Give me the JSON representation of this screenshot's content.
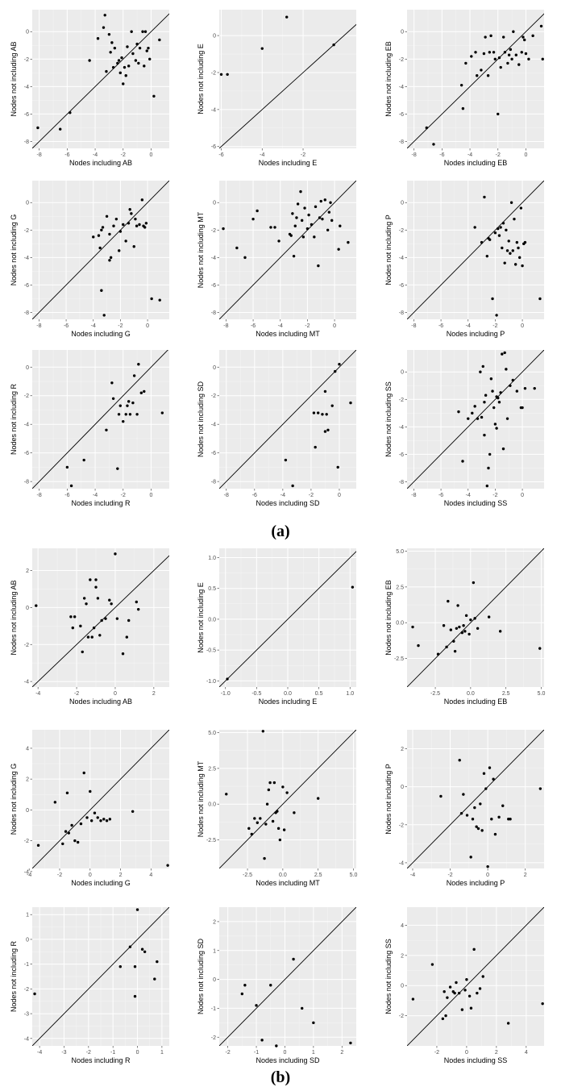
{
  "captions": {
    "a": "(a)",
    "b": "(b)"
  },
  "chart_data": [
    {
      "type": "scatter",
      "panel": "a",
      "xlabel": "Nodes including AB",
      "ylabel": "Nodes not including AB",
      "xlim": [
        -8.5,
        1.3
      ],
      "ylim": [
        -8.5,
        1.6
      ],
      "xticks": [
        -8,
        -6,
        -4,
        -2,
        0
      ],
      "yticks": [
        -8,
        -6,
        -4,
        -2,
        0
      ],
      "x": [
        -8.1,
        -6.5,
        -5.8,
        -4.4,
        -3.8,
        -3.4,
        -3.3,
        -3.2,
        -3.0,
        -2.9,
        -2.8,
        -2.7,
        -2.6,
        -2.4,
        -2.3,
        -2.1,
        -2.0,
        -1.8,
        -1.7,
        -1.6,
        -1.4,
        -1.3,
        -1.1,
        -1.0,
        -0.9,
        -0.8,
        -0.6,
        -0.5,
        -0.4,
        -0.3,
        -0.2,
        -0.1,
        0.2,
        0.6,
        -1.9,
        -2.2
      ],
      "y": [
        -7.0,
        -7.1,
        -5.9,
        -2.1,
        -0.5,
        0.3,
        1.2,
        -2.9,
        -0.2,
        -1.5,
        -0.8,
        -2.6,
        -1.2,
        -2.3,
        -2.1,
        -1.9,
        -3.8,
        -3.2,
        -1.1,
        -2.5,
        0.0,
        -1.6,
        -2.1,
        -0.9,
        -2.3,
        -1.2,
        0.0,
        -2.5,
        0.0,
        -1.4,
        -1.2,
        -2.0,
        -4.7,
        -0.6,
        -2.6,
        -3.0
      ]
    },
    {
      "type": "scatter",
      "panel": "a",
      "xlabel": "Nodes including E",
      "ylabel": "Nodes not including E",
      "xlim": [
        -6.1,
        0.6
      ],
      "ylim": [
        -6.1,
        1.4
      ],
      "xticks": [
        -6,
        -4,
        -2
      ],
      "yticks": [
        -6,
        -4,
        -2,
        0
      ],
      "x": [
        -6.0,
        -5.7,
        -4.0,
        -2.8,
        -0.5
      ],
      "y": [
        -2.1,
        -2.1,
        -0.7,
        1.0,
        -0.5
      ]
    },
    {
      "type": "scatter",
      "panel": "a",
      "xlabel": "Nodes including EB",
      "ylabel": "Nodes not including EB",
      "xlim": [
        -8.5,
        1.3
      ],
      "ylim": [
        -8.5,
        1.6
      ],
      "xticks": [
        -8,
        -6,
        -4,
        -2,
        0
      ],
      "yticks": [
        -8,
        -6,
        -4,
        -2,
        0
      ],
      "x": [
        -7.1,
        -6.6,
        -4.6,
        -4.5,
        -4.3,
        -3.9,
        -3.6,
        -3.5,
        -3.2,
        -3.0,
        -2.9,
        -2.7,
        -2.6,
        -2.5,
        -2.3,
        -2.2,
        -2.0,
        -1.9,
        -1.8,
        -1.6,
        -1.5,
        -1.3,
        -1.2,
        -1.1,
        -1.0,
        -0.9,
        -0.7,
        -0.5,
        -0.3,
        -0.2,
        -0.1,
        0.0,
        0.2,
        0.5,
        1.1,
        1.2
      ],
      "y": [
        -7.0,
        -8.2,
        -3.9,
        -5.6,
        -2.3,
        -1.8,
        -1.5,
        -3.2,
        -2.8,
        -1.6,
        -0.4,
        -3.2,
        -1.5,
        -0.3,
        -1.5,
        -2.0,
        -6.0,
        -1.9,
        -2.6,
        -0.4,
        -1.5,
        -2.3,
        -1.7,
        -1.3,
        -2.0,
        0.0,
        -1.7,
        -2.4,
        -1.5,
        -0.4,
        -0.6,
        -1.6,
        -2.0,
        -0.3,
        0.4,
        -2.0
      ]
    },
    {
      "type": "scatter",
      "panel": "a",
      "xlabel": "Nodes including G",
      "ylabel": "Nodes not including G",
      "xlim": [
        -8.5,
        1.6
      ],
      "ylim": [
        -8.5,
        1.6
      ],
      "xticks": [
        -8,
        -6,
        -4,
        -2,
        0
      ],
      "yticks": [
        -8,
        -6,
        -4,
        -2,
        0
      ],
      "x": [
        -4.0,
        -3.6,
        -3.5,
        -3.4,
        -3.2,
        -3.0,
        -2.8,
        -2.7,
        -2.5,
        -2.3,
        -2.1,
        -2.0,
        -1.8,
        -1.6,
        -1.4,
        -1.3,
        -1.2,
        -1.0,
        -0.9,
        -0.8,
        -0.6,
        -0.4,
        -0.3,
        -0.2,
        -0.1,
        0.3,
        0.9,
        -3.3,
        -3.4,
        -2.8
      ],
      "y": [
        -2.5,
        -2.4,
        -3.3,
        -6.4,
        -8.2,
        -1.0,
        -2.3,
        -4.0,
        -1.7,
        -1.2,
        -3.5,
        -2.1,
        -1.6,
        -2.8,
        -1.5,
        -0.5,
        -0.8,
        -3.2,
        -1.2,
        -1.7,
        -1.6,
        0.2,
        -1.7,
        -1.8,
        -1.5,
        -7.0,
        -7.1,
        -1.8,
        -2.0,
        -4.2
      ]
    },
    {
      "type": "scatter",
      "panel": "a",
      "xlabel": "Nodes including MT",
      "ylabel": "Nodes not including MT",
      "xlim": [
        -8.5,
        1.6
      ],
      "ylim": [
        -8.5,
        1.6
      ],
      "xticks": [
        -8,
        -6,
        -4,
        -2,
        0
      ],
      "yticks": [
        -8,
        -6,
        -4,
        -2,
        0
      ],
      "x": [
        -8.2,
        -7.2,
        -6.6,
        -6.0,
        -5.7,
        -4.7,
        -4.4,
        -4.1,
        -3.3,
        -3.1,
        -3.0,
        -2.8,
        -2.7,
        -2.5,
        -2.4,
        -2.3,
        -2.2,
        -2.0,
        -1.7,
        -1.5,
        -1.4,
        -1.2,
        -1.1,
        -1.0,
        -0.9,
        -0.7,
        -0.5,
        -0.4,
        -0.3,
        -0.2,
        0.3,
        0.4,
        1.0,
        -2.9,
        -1.9,
        -3.2
      ],
      "y": [
        -1.9,
        -3.3,
        -4.0,
        -1.2,
        -0.6,
        -1.8,
        -1.8,
        -2.8,
        -2.3,
        -0.8,
        -3.9,
        -1.1,
        -0.1,
        0.8,
        -1.3,
        -2.5,
        -0.4,
        -1.9,
        -1.6,
        -2.5,
        -0.3,
        -4.6,
        -1.1,
        0.1,
        -1.2,
        0.2,
        -2.0,
        -0.7,
        0.0,
        -1.3,
        -3.4,
        -1.7,
        -2.9,
        -1.7,
        -0.9,
        -2.4
      ]
    },
    {
      "type": "scatter",
      "panel": "a",
      "xlabel": "Nodes including P",
      "ylabel": "Nodes not including P",
      "xlim": [
        -8.5,
        1.6
      ],
      "ylim": [
        -8.5,
        1.6
      ],
      "xticks": [
        -8,
        -6,
        -4,
        -2,
        0
      ],
      "yticks": [
        -8,
        -6,
        -4,
        -2,
        0
      ],
      "x": [
        -3.5,
        -3.0,
        -2.8,
        -2.6,
        -2.5,
        -2.2,
        -2.0,
        -1.8,
        -1.7,
        -1.6,
        -1.5,
        -1.4,
        -1.3,
        -1.2,
        -1.1,
        -1.0,
        -0.9,
        -0.8,
        -0.7,
        -0.6,
        -0.5,
        -0.4,
        -0.3,
        -0.2,
        -0.1,
        0.0,
        0.1,
        0.2,
        1.3,
        -2.4,
        -1.9
      ],
      "y": [
        -1.8,
        -2.9,
        0.4,
        -3.9,
        -2.6,
        -7.0,
        -2.2,
        -1.9,
        -2.4,
        -1.8,
        -3.3,
        -1.5,
        -4.4,
        -2.0,
        -3.5,
        -2.8,
        -3.7,
        0.0,
        -3.5,
        -1.2,
        -4.5,
        -2.9,
        -3.3,
        -4.0,
        -0.4,
        -4.6,
        -3.0,
        -2.9,
        -7.0,
        -2.7,
        -8.2
      ]
    },
    {
      "type": "scatter",
      "panel": "a",
      "xlabel": "Nodes including R",
      "ylabel": "Nodes not including R",
      "xlim": [
        -8.5,
        1.3
      ],
      "ylim": [
        -8.5,
        1.2
      ],
      "xticks": [
        -8,
        -6,
        -4,
        -2,
        0
      ],
      "yticks": [
        -8,
        -6,
        -4,
        -2,
        0
      ],
      "x": [
        -6.0,
        -5.7,
        -4.8,
        -3.2,
        -2.8,
        -2.7,
        -2.4,
        -2.3,
        -2.2,
        -2.0,
        -1.8,
        -1.7,
        -1.5,
        -1.3,
        -1.2,
        -1.0,
        -0.9,
        -0.7,
        -0.5,
        0.8,
        -1.6
      ],
      "y": [
        -7.0,
        -8.3,
        -6.5,
        -4.4,
        -1.1,
        -2.2,
        -7.1,
        -3.3,
        -2.7,
        -3.8,
        -3.3,
        -2.7,
        -3.3,
        -2.5,
        -0.6,
        -3.3,
        0.2,
        -1.8,
        -1.7,
        -3.2,
        -2.4
      ]
    },
    {
      "type": "scatter",
      "panel": "a",
      "xlabel": "Nodes including SD",
      "ylabel": "Nodes not including SD",
      "xlim": [
        -8.5,
        1.2
      ],
      "ylim": [
        -8.5,
        1.2
      ],
      "xticks": [
        -8,
        -6,
        -4,
        -2,
        0
      ],
      "yticks": [
        -8,
        -6,
        -4,
        -2,
        0
      ],
      "x": [
        -3.8,
        -3.3,
        -1.8,
        -1.7,
        -1.5,
        -1.2,
        -1.0,
        -0.9,
        -0.8,
        -0.5,
        -0.3,
        -0.1,
        0.0,
        0.8,
        -1.0
      ],
      "y": [
        -6.5,
        -8.3,
        -3.2,
        -5.6,
        -3.2,
        -3.3,
        -1.7,
        -3.3,
        -4.4,
        -2.7,
        -0.3,
        -7.0,
        0.2,
        -2.5,
        -4.5
      ]
    },
    {
      "type": "scatter",
      "panel": "a",
      "xlabel": "Nodes including SS",
      "ylabel": "Nodes not including SS",
      "xlim": [
        -8.5,
        1.6
      ],
      "ylim": [
        -8.5,
        1.6
      ],
      "xticks": [
        -8,
        -6,
        -4,
        -2,
        0
      ],
      "yticks": [
        -8,
        -6,
        -4,
        -2,
        0
      ],
      "x": [
        -4.7,
        -4.4,
        -4.0,
        -3.7,
        -3.5,
        -3.3,
        -3.1,
        -3.0,
        -2.9,
        -2.8,
        -2.7,
        -2.6,
        -2.5,
        -2.4,
        -2.3,
        -2.2,
        -2.1,
        -2.0,
        -1.9,
        -1.8,
        -1.7,
        -1.6,
        -1.5,
        -1.4,
        -1.3,
        -1.2,
        -1.1,
        -0.9,
        -0.7,
        -0.4,
        -0.1,
        0.0,
        0.2,
        0.9,
        -2.8,
        -1.9
      ],
      "y": [
        -2.9,
        -6.5,
        -3.4,
        -3.0,
        -2.5,
        -3.4,
        0.0,
        -3.3,
        0.4,
        -4.6,
        -1.7,
        -8.3,
        -7.0,
        -6.0,
        -0.5,
        -1.4,
        -2.6,
        -3.8,
        -1.8,
        -1.9,
        -2.2,
        -1.5,
        1.3,
        -5.6,
        1.4,
        0.2,
        -3.4,
        -1.0,
        -0.6,
        -1.4,
        -2.6,
        -2.6,
        -1.2,
        -1.2,
        -2.2,
        -4.1
      ]
    },
    {
      "type": "scatter",
      "panel": "b",
      "xlabel": "Nodes including AB",
      "ylabel": "Nodes not including AB",
      "xlim": [
        -4.3,
        2.8
      ],
      "ylim": [
        -4.3,
        3.2
      ],
      "xticks": [
        -4,
        -2,
        0,
        2
      ],
      "yticks": [
        -4,
        -2,
        0,
        2
      ],
      "x": [
        -4.1,
        -2.3,
        -2.2,
        -2.1,
        -1.8,
        -1.7,
        -1.6,
        -1.5,
        -1.4,
        -1.2,
        -1.1,
        -1.0,
        -0.9,
        -0.8,
        -0.7,
        -0.5,
        -0.3,
        -0.2,
        0.0,
        0.1,
        0.4,
        0.6,
        0.7,
        1.1,
        1.2,
        -1.0,
        -1.3
      ],
      "y": [
        0.1,
        -0.5,
        -1.1,
        -0.5,
        -1.0,
        -2.4,
        0.5,
        0.2,
        -1.6,
        -1.6,
        -1.1,
        1.5,
        0.5,
        -1.5,
        -0.7,
        -0.6,
        0.4,
        0.2,
        2.9,
        -0.6,
        -2.5,
        -1.6,
        -0.7,
        0.3,
        -0.1,
        1.1,
        1.5
      ]
    },
    {
      "type": "scatter",
      "panel": "b",
      "xlabel": "Nodes including E",
      "ylabel": "Nodes not including E",
      "xlim": [
        -1.1,
        1.1
      ],
      "ylim": [
        -1.1,
        1.15
      ],
      "xticks": [
        -1.0,
        -0.5,
        0.0,
        0.5,
        1.0
      ],
      "yticks": [
        -1.0,
        -0.5,
        0.0,
        0.5,
        1.0
      ],
      "x": [
        -0.97,
        1.04
      ],
      "y": [
        -0.97,
        0.52
      ]
    },
    {
      "type": "scatter",
      "panel": "b",
      "xlabel": "Nodes including EB",
      "ylabel": "Nodes not including EB",
      "xlim": [
        -4.5,
        5.2
      ],
      "ylim": [
        -4.5,
        5.2
      ],
      "xticks": [
        -2.5,
        0.0,
        2.5,
        5.0
      ],
      "yticks": [
        -2.5,
        0.0,
        2.5,
        5.0
      ],
      "x": [
        -4.1,
        -3.7,
        -2.3,
        -1.9,
        -1.7,
        -1.6,
        -1.4,
        -1.2,
        -1.1,
        -1.0,
        -0.8,
        -0.6,
        -0.5,
        -0.3,
        -0.1,
        0.0,
        0.2,
        0.3,
        0.5,
        1.3,
        2.1,
        4.9,
        -0.9,
        -0.4
      ],
      "y": [
        -0.3,
        -1.6,
        -2.2,
        -0.2,
        -1.7,
        1.5,
        -0.5,
        -1.3,
        -2.0,
        -0.4,
        -0.3,
        -0.7,
        -0.2,
        0.5,
        -0.8,
        0.2,
        2.8,
        0.3,
        -0.4,
        0.4,
        -0.6,
        -1.8,
        1.2,
        -0.6
      ]
    },
    {
      "type": "scatter",
      "panel": "b",
      "xlabel": "Nodes including G",
      "ylabel": "Nodes not including G",
      "xlim": [
        -3.8,
        5.2
      ],
      "ylim": [
        -3.8,
        5.2
      ],
      "xticks": [
        -4,
        -2,
        0,
        2,
        4
      ],
      "yticks": [
        -4,
        -2,
        0,
        2,
        4
      ],
      "x": [
        -3.4,
        -2.3,
        -1.8,
        -1.6,
        -1.4,
        -1.2,
        -1.0,
        -0.8,
        -0.6,
        -0.4,
        -0.2,
        0.0,
        0.1,
        0.3,
        0.5,
        0.7,
        0.9,
        1.1,
        1.3,
        2.8,
        5.1,
        -1.5
      ],
      "y": [
        -2.3,
        0.5,
        -2.2,
        -1.4,
        -1.5,
        -1.0,
        -2.0,
        -2.1,
        -0.9,
        2.4,
        -0.5,
        1.2,
        -0.7,
        -0.2,
        -0.5,
        -0.7,
        -0.6,
        -0.7,
        -0.6,
        -0.1,
        -3.6,
        1.1
      ]
    },
    {
      "type": "scatter",
      "panel": "b",
      "xlabel": "Nodes including MT",
      "ylabel": "Nodes not including MT",
      "xlim": [
        -4.5,
        5.2
      ],
      "ylim": [
        -4.5,
        5.2
      ],
      "xticks": [
        -2.5,
        0.0,
        2.5,
        5.0
      ],
      "yticks": [
        -2.5,
        0.0,
        2.5,
        5.0
      ],
      "x": [
        -4.0,
        -2.4,
        -2.2,
        -2.0,
        -1.8,
        -1.6,
        -1.4,
        -1.3,
        -1.2,
        -1.0,
        -0.9,
        -0.7,
        -0.6,
        -0.5,
        -0.4,
        -0.2,
        0.0,
        0.1,
        0.3,
        0.8,
        2.5,
        -1.1,
        -0.3
      ],
      "y": [
        0.7,
        -1.7,
        -2.1,
        -1.0,
        -1.3,
        -1.0,
        5.1,
        -3.8,
        -1.4,
        1.0,
        1.5,
        -1.2,
        1.5,
        -0.6,
        -0.5,
        -2.5,
        1.2,
        -1.8,
        0.8,
        -0.6,
        0.4,
        0.0,
        -1.7
      ]
    },
    {
      "type": "scatter",
      "panel": "b",
      "xlabel": "Nodes including P",
      "ylabel": "Nodes not including P",
      "xlim": [
        -4.3,
        3.0
      ],
      "ylim": [
        -4.3,
        3.0
      ],
      "xticks": [
        -4,
        -2,
        0,
        2
      ],
      "yticks": [
        -4,
        -2,
        0,
        2
      ],
      "x": [
        -2.5,
        -1.5,
        -1.3,
        -1.1,
        -0.9,
        -0.8,
        -0.6,
        -0.5,
        -0.4,
        -0.3,
        -0.2,
        -0.1,
        0.0,
        0.1,
        0.2,
        0.3,
        0.4,
        0.6,
        0.8,
        1.1,
        1.2,
        2.8,
        -1.4,
        -0.7
      ],
      "y": [
        -0.5,
        1.4,
        -0.4,
        -1.5,
        -3.7,
        -1.7,
        -2.1,
        -2.2,
        -0.9,
        -2.3,
        0.7,
        -0.1,
        -4.2,
        1.0,
        -1.7,
        0.4,
        -2.5,
        -1.6,
        -1.0,
        -1.7,
        -1.7,
        -0.1,
        -1.4,
        -1.1
      ]
    },
    {
      "type": "scatter",
      "panel": "b",
      "xlabel": "Nodes including R",
      "ylabel": "Nodes not including R",
      "xlim": [
        -4.3,
        1.3
      ],
      "ylim": [
        -4.3,
        1.3
      ],
      "xticks": [
        -4,
        -3,
        -2,
        -1,
        0,
        1
      ],
      "yticks": [
        -4,
        -3,
        -2,
        -1,
        0,
        1
      ],
      "x": [
        -4.2,
        -0.7,
        -0.3,
        -0.1,
        0.0,
        0.2,
        0.3,
        0.7,
        0.8,
        -0.1
      ],
      "y": [
        -2.2,
        -1.1,
        -0.3,
        -2.3,
        1.2,
        -0.4,
        -0.5,
        -1.6,
        -0.9,
        -1.1
      ]
    },
    {
      "type": "scatter",
      "panel": "b",
      "xlabel": "Nodes including SD",
      "ylabel": "Nodes not including SD",
      "xlim": [
        -2.3,
        2.5
      ],
      "ylim": [
        -2.3,
        2.5
      ],
      "xticks": [
        -2,
        -1,
        0,
        1,
        2
      ],
      "yticks": [
        -2,
        -1,
        0,
        1,
        2
      ],
      "x": [
        -1.5,
        -1.4,
        -1.0,
        -0.8,
        -0.5,
        -0.3,
        0.3,
        0.6,
        1.0,
        2.3
      ],
      "y": [
        -0.5,
        -0.2,
        -0.9,
        -2.1,
        -0.2,
        -2.3,
        0.7,
        -1.0,
        -1.5,
        -2.2
      ]
    },
    {
      "type": "scatter",
      "panel": "b",
      "xlabel": "Nodes including SS",
      "ylabel": "Nodes not including SS",
      "xlim": [
        -4.0,
        5.2
      ],
      "ylim": [
        -4.0,
        5.2
      ],
      "xticks": [
        -2,
        0,
        2,
        4
      ],
      "yticks": [
        -2,
        0,
        2,
        4
      ],
      "x": [
        -3.6,
        -2.3,
        -1.6,
        -1.5,
        -1.3,
        -1.1,
        -0.9,
        -0.7,
        -0.5,
        -0.3,
        -0.1,
        0.0,
        0.2,
        0.3,
        0.5,
        0.7,
        0.9,
        1.1,
        2.8,
        5.1,
        -1.4,
        -0.8
      ],
      "y": [
        -0.9,
        1.4,
        -2.2,
        -0.4,
        -0.8,
        -0.1,
        -0.4,
        0.2,
        -0.5,
        -1.6,
        -0.3,
        0.4,
        -0.7,
        -1.5,
        2.4,
        -0.5,
        -0.2,
        0.6,
        -2.5,
        -1.2,
        -2.0,
        -0.5
      ]
    }
  ]
}
